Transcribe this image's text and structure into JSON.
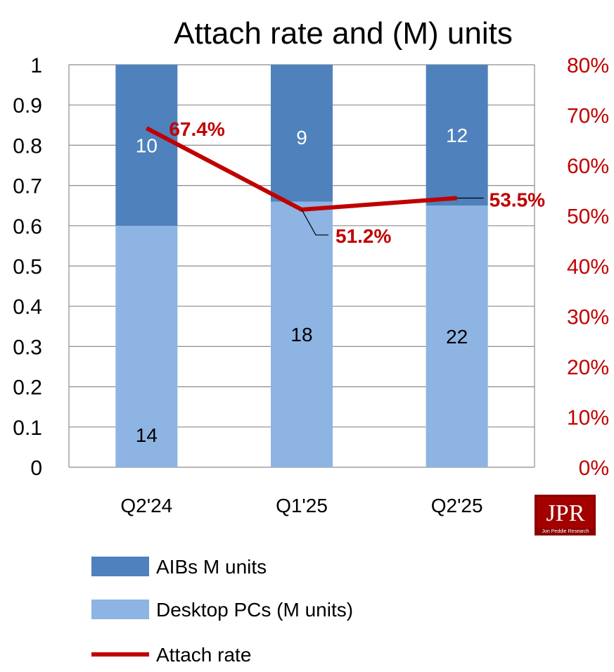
{
  "chart_data": {
    "type": "bar",
    "stacked": true,
    "title": "Attach rate and (M) units",
    "categories": [
      "Q2'24",
      "Q1'25",
      "Q2'25"
    ],
    "series": [
      {
        "name": "AIBs M units",
        "type": "bar",
        "values": [
          10,
          9,
          12
        ],
        "color": "#4f81bd",
        "plotted_share": [
          0.4,
          0.34,
          0.35
        ],
        "label_color": "#ffffff"
      },
      {
        "name": "Desktop PCs (M units)",
        "type": "bar",
        "values": [
          14,
          18,
          22
        ],
        "color": "#8db4e2",
        "plotted_share": [
          0.6,
          0.66,
          0.65
        ],
        "label_color": "#000000"
      },
      {
        "name": "Attach rate",
        "type": "line",
        "axis": "right",
        "values": [
          0.674,
          0.512,
          0.535
        ],
        "labels": [
          "67.4%",
          "51.2%",
          "53.5%"
        ],
        "color": "#c00000"
      }
    ],
    "ylim": [
      0,
      1
    ],
    "yticks": [
      "0",
      "0.1",
      "0.2",
      "0.3",
      "0.4",
      "0.5",
      "0.6",
      "0.7",
      "0.8",
      "0.9",
      "1"
    ],
    "y2lim": [
      0,
      0.8
    ],
    "y2ticks": [
      "0%",
      "10%",
      "20%",
      "30%",
      "40%",
      "50%",
      "60%",
      "70%",
      "80%"
    ],
    "grid": true,
    "legend_position": "bottom"
  },
  "logo": {
    "text": "JPR",
    "subtitle": "Jon Peddie Research"
  }
}
